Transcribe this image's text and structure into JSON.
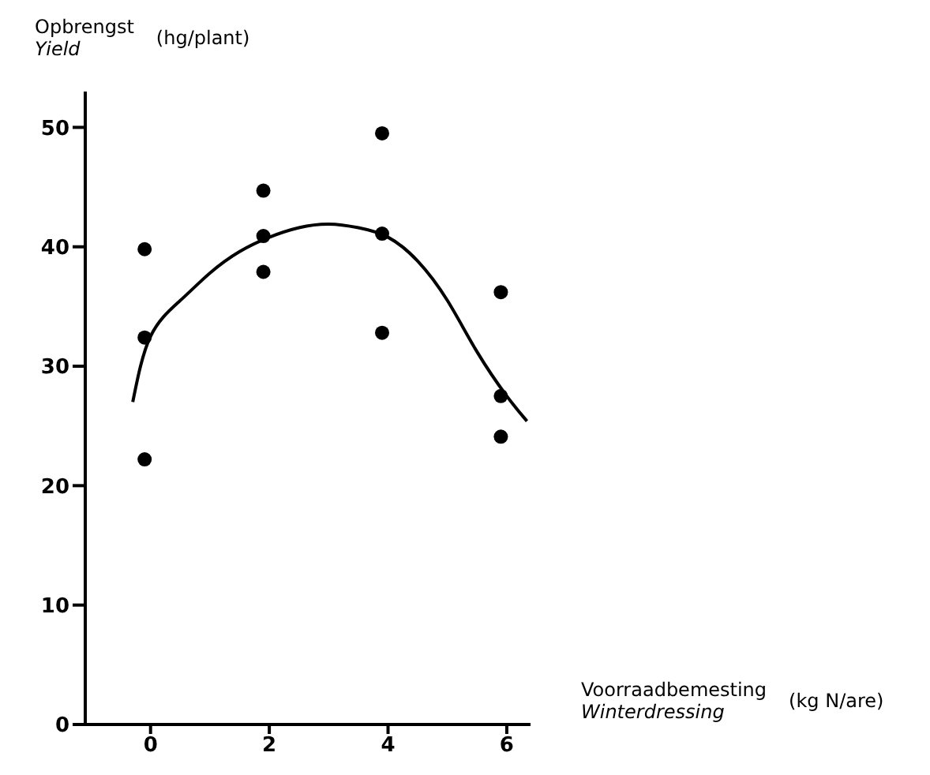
{
  "chart_data": {
    "type": "scatter",
    "ylabel": "Opbrengst\nYield\n(hg/plant)",
    "xlabel": "Voorraadbemesting\nWinterdressing\n(kg N/are)",
    "xlim": [
      -1.1,
      6.4
    ],
    "xticks": [
      0,
      2,
      4,
      6
    ],
    "ylim": [
      0,
      53
    ],
    "yticks": [
      0,
      10,
      20,
      30,
      40,
      50
    ],
    "grid": false,
    "legend": false,
    "marker": "circle",
    "series": [
      {
        "color": "#000000",
        "x": [
          -0.1,
          -0.1,
          -0.1,
          1.9,
          1.9,
          1.9,
          3.9,
          3.9,
          3.9,
          5.9,
          5.9,
          5.9
        ],
        "values": [
          39.8,
          32.4,
          22.2,
          44.7,
          40.9,
          37.9,
          49.5,
          41.1,
          32.8,
          36.2,
          27.5,
          24.1
        ]
      },
      {
        "type": "line",
        "color": "#000000",
        "marker": "none",
        "line_style": "solid",
        "x": [
          -0.3,
          0,
          0.5,
          1,
          1.5,
          2,
          2.5,
          3,
          3.5,
          4,
          4.5,
          5,
          5.5,
          6,
          6.34
        ],
        "values": [
          27.0,
          32.5,
          35.5,
          37.8,
          39.6,
          40.8,
          41.6,
          41.9,
          41.6,
          40.8,
          38.8,
          35.5,
          31.2,
          27.5,
          25.4
        ]
      }
    ]
  }
}
